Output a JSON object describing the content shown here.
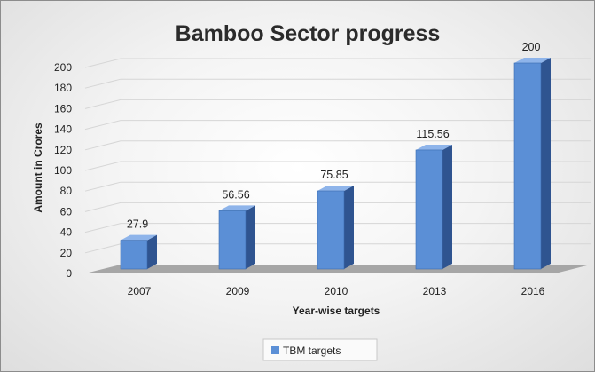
{
  "chart_data": {
    "type": "bar",
    "title": "Bamboo Sector progress",
    "xlabel": "Year-wise targets",
    "ylabel": "Amount in Crores",
    "categories": [
      "2007",
      "2009",
      "2010",
      "2013",
      "2016"
    ],
    "series": [
      {
        "name": "TBM targets",
        "values": [
          27.9,
          56.56,
          75.85,
          115.56,
          200
        ]
      }
    ],
    "data_labels": [
      "27.9",
      "56.56",
      "75.85",
      "115.56",
      "200"
    ],
    "y_ticks": [
      "0",
      "20",
      "40",
      "60",
      "80",
      "100",
      "120",
      "140",
      "160",
      "180",
      "200"
    ],
    "ylim": [
      0,
      200
    ],
    "grid": true,
    "style": "3d-column",
    "legend": "bottom-center",
    "colors": {
      "bar_front": "#5b8fd6",
      "bar_side": "#2f5490",
      "bar_top": "#8eb4ea",
      "floor": "#a6a6a6",
      "grid": "#d6d6d6"
    }
  }
}
